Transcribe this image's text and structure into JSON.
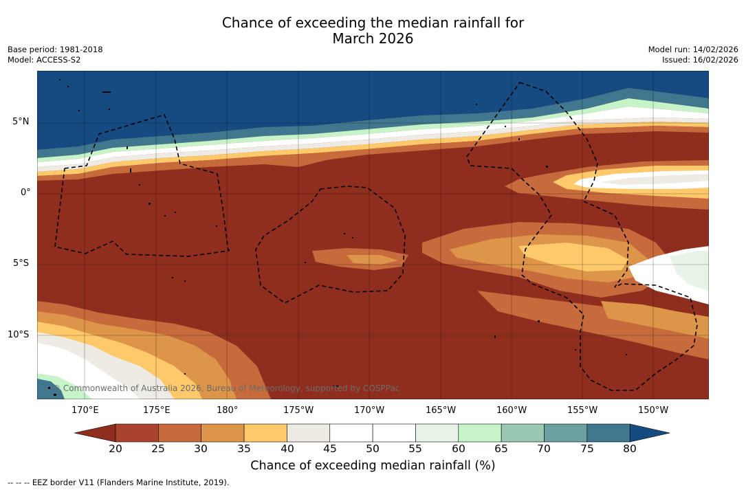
{
  "title_line1": "Chance of exceeding the median rainfall for",
  "title_line2": "March 2026",
  "base_period": "Base period: 1981-2018",
  "model": "Model: ACCESS-S2",
  "model_run": "Model run: 14/02/2026",
  "issued": "Issued: 16/02/2026",
  "copyright": "© Commonwealth of Australia 2026, Bureau of Meteorology, supported by COSPPac",
  "latitude_labels": [
    "5°N",
    "0°",
    "5°S",
    "10°S"
  ],
  "longitude_labels": [
    "170°E",
    "175°E",
    "180°",
    "175°W",
    "170°W",
    "165°W",
    "160°W",
    "155°W",
    "150°W"
  ],
  "colorbar": {
    "ticks": [
      "20",
      "25",
      "30",
      "35",
      "40",
      "45",
      "50",
      "55",
      "60",
      "65",
      "70",
      "75",
      "80"
    ],
    "colors": [
      "#8f2e1f",
      "#a9432d",
      "#c76a3c",
      "#dd9549",
      "#fdc96a",
      "#eeeae4",
      "#ffffff",
      "#ffffff",
      "#e9f4e9",
      "#c7f3c8",
      "#99c8b3",
      "#6c9fa1",
      "#40778f",
      "#154b81"
    ],
    "label": "Chance of exceeding median rainfall (%)"
  },
  "footnote": "-- -- -- EEZ border V11 (Flanders Marine Institute, 2019)."
}
